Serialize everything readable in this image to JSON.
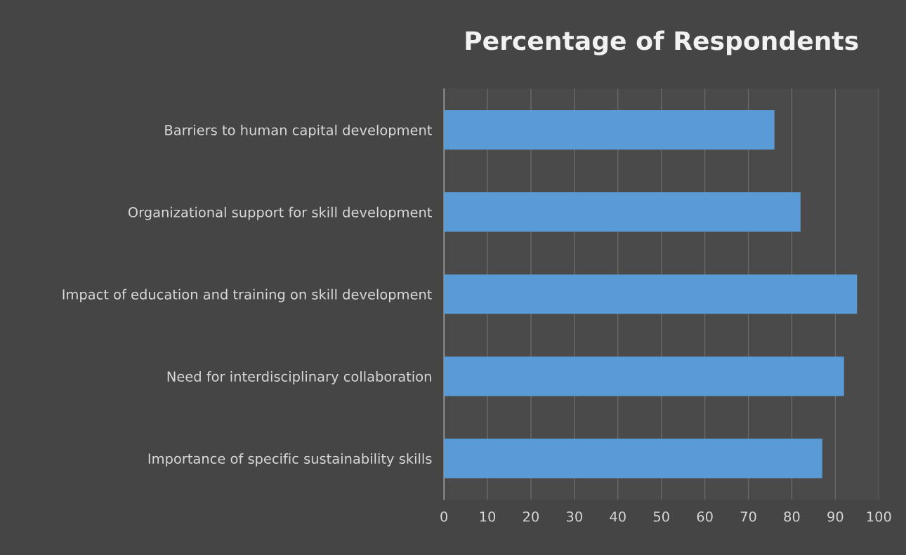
{
  "chart_data": {
    "type": "bar",
    "orientation": "horizontal",
    "title": "Percentage of Respondents",
    "categories": [
      "Barriers to human capital development",
      "Organizational support for skill development",
      "Impact of education and training on skill development",
      "Need for interdisciplinary collaboration",
      "Importance of specific sustainability skills"
    ],
    "values": [
      76,
      82,
      95,
      92,
      87
    ],
    "color": "#5b9bd5",
    "xlim": [
      0,
      100
    ],
    "xticks": [
      0,
      10,
      20,
      30,
      40,
      50,
      60,
      70,
      80,
      90,
      100
    ],
    "grid": "x"
  }
}
